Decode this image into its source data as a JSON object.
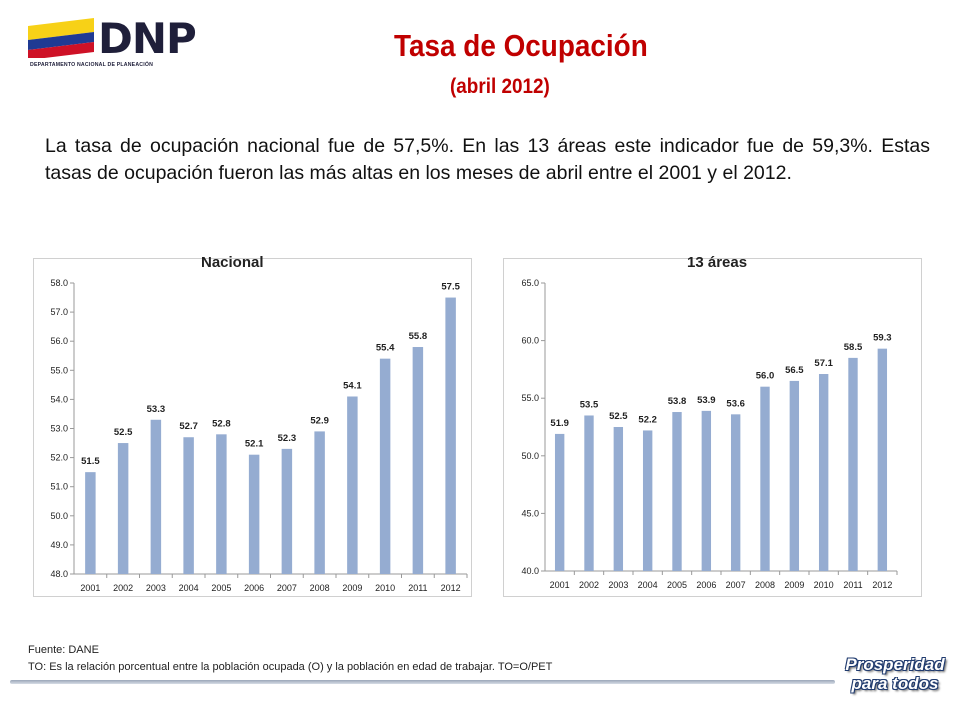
{
  "header": {
    "logo_text": "DNP",
    "logo_subtext": "DEPARTAMENTO NACIONAL DE PLANEACIÓN",
    "logo_colors": [
      "#f7d117",
      "#1f3a93",
      "#ce1126"
    ],
    "title": "Tasa de Ocupación",
    "subtitle": "(abril 2012)"
  },
  "intro": "La tasa de ocupación nacional fue de 57,5%. En las 13 áreas este indicador fue de 59,3%. Estas tasas de ocupación fueron las más altas en los meses de abril entre el 2001 y el 2012.",
  "footer": {
    "source": "Fuente: DANE",
    "note": "TO: Es la relación porcentual entre la población ocupada (O) y la población  en edad de trabajar. TO=O/PET"
  },
  "brand": {
    "line1": "Prosperidad",
    "line2": "para todos"
  },
  "colors": {
    "title": "#c00000",
    "bar": "#95acd1"
  },
  "chart_data": [
    {
      "type": "bar",
      "title": "Nacional",
      "categories": [
        "2001",
        "2002",
        "2003",
        "2004",
        "2005",
        "2006",
        "2007",
        "2008",
        "2009",
        "2010",
        "2011",
        "2012"
      ],
      "values": [
        51.5,
        52.5,
        53.3,
        52.7,
        52.8,
        52.1,
        52.3,
        52.9,
        54.1,
        55.4,
        55.8,
        57.5
      ],
      "value_labels": [
        "51.5",
        "52.5",
        "53.3",
        "52.7",
        "52.8",
        "52.1",
        "52.3",
        "52.9",
        "54.1",
        "55.4",
        "55.8",
        "57.5"
      ],
      "yticks": [
        "48.0",
        "49.0",
        "50.0",
        "51.0",
        "52.0",
        "53.0",
        "54.0",
        "55.0",
        "56.0",
        "57.0",
        "58.0"
      ],
      "ylim": [
        48,
        58
      ],
      "xlabel": "",
      "ylabel": "",
      "grid": false
    },
    {
      "type": "bar",
      "title": "13 áreas",
      "categories": [
        "2001",
        "2002",
        "2003",
        "2004",
        "2005",
        "2006",
        "2007",
        "2008",
        "2009",
        "2010",
        "2011",
        "2012"
      ],
      "values": [
        51.9,
        53.5,
        52.5,
        52.2,
        53.8,
        53.9,
        53.6,
        56.0,
        56.5,
        57.1,
        58.5,
        59.3
      ],
      "value_labels": [
        "51.9",
        "53.5",
        "52.5",
        "52.2",
        "53.8",
        "53.9",
        "53.6",
        "56.0",
        "56.5",
        "57.1",
        "58.5",
        "59.3"
      ],
      "yticks": [
        "40.0",
        "45.0",
        "50.0",
        "55.0",
        "60.0",
        "65.0"
      ],
      "ylim": [
        40,
        65
      ],
      "xlabel": "",
      "ylabel": "",
      "grid": false
    }
  ]
}
